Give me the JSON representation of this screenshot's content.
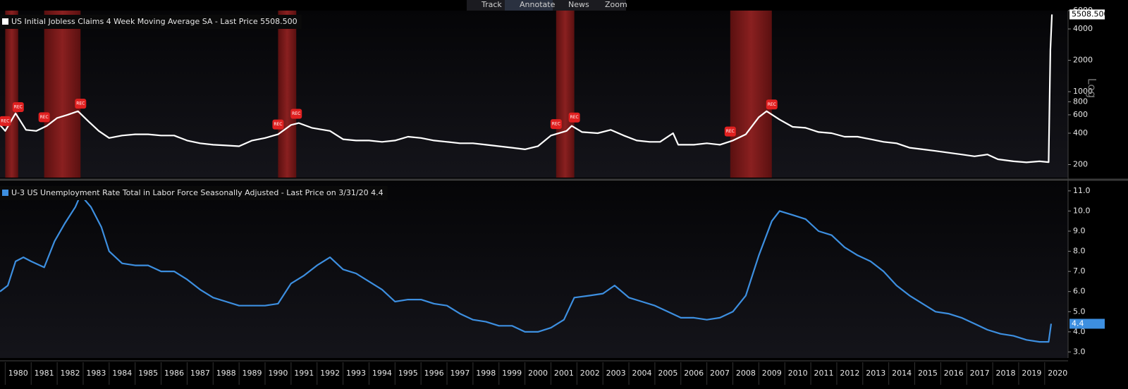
{
  "toolbar": {
    "items": [
      "Track",
      "Annotate",
      "News",
      "Zoom"
    ]
  },
  "chart_data": [
    {
      "type": "line",
      "log_scale": true,
      "axis_label": "Log",
      "recession_label": "REC",
      "recessions": [
        [
          1980.0,
          1980.5
        ],
        [
          1981.5,
          1982.9
        ],
        [
          1990.5,
          1991.2
        ],
        [
          2001.2,
          2001.9
        ],
        [
          2007.9,
          2009.5
        ]
      ],
      "xlim": [
        1979.8,
        2020.9
      ],
      "ylim": [
        150,
        6000
      ],
      "yticks": [
        200,
        400,
        600,
        800,
        1000,
        2000,
        4000,
        6000
      ],
      "series": [
        {
          "name": "US Initial Jobless Claims 4 Week Moving Average SA - Last Price 5508.500",
          "color": "#ffffff",
          "x": [
            1979.8,
            1980.0,
            1980.4,
            1980.8,
            1981.2,
            1981.6,
            1982.0,
            1982.4,
            1982.8,
            1983.2,
            1983.6,
            1984.0,
            1984.5,
            1985.0,
            1985.5,
            1986.0,
            1986.5,
            1987.0,
            1987.5,
            1988.0,
            1988.5,
            1989.0,
            1989.5,
            1990.0,
            1990.5,
            1991.0,
            1991.3,
            1991.8,
            1992.5,
            1993.0,
            1993.5,
            1994.0,
            1994.5,
            1995.0,
            1995.5,
            1996.0,
            1996.5,
            1997.0,
            1997.5,
            1998.0,
            1998.5,
            1999.0,
            1999.5,
            2000.0,
            2000.5,
            2001.0,
            2001.6,
            2001.8,
            2002.2,
            2002.8,
            2003.3,
            2003.8,
            2004.3,
            2004.8,
            2005.2,
            2005.7,
            2005.9,
            2006.5,
            2007.0,
            2007.5,
            2008.0,
            2008.5,
            2009.0,
            2009.3,
            2009.8,
            2010.3,
            2010.8,
            2011.3,
            2011.8,
            2012.3,
            2012.8,
            2013.3,
            2013.8,
            2014.3,
            2014.8,
            2015.3,
            2015.8,
            2016.3,
            2016.8,
            2017.3,
            2017.8,
            2018.2,
            2018.8,
            2019.3,
            2019.8,
            2020.15,
            2020.22,
            2020.28
          ],
          "values": [
            480,
            420,
            620,
            430,
            420,
            470,
            560,
            600,
            650,
            520,
            420,
            360,
            380,
            390,
            390,
            380,
            380,
            340,
            320,
            310,
            305,
            300,
            340,
            360,
            390,
            480,
            500,
            450,
            420,
            350,
            340,
            340,
            330,
            340,
            370,
            360,
            340,
            330,
            320,
            320,
            310,
            300,
            290,
            280,
            300,
            380,
            420,
            470,
            410,
            400,
            430,
            380,
            340,
            330,
            330,
            400,
            310,
            310,
            320,
            310,
            340,
            390,
            570,
            650,
            540,
            460,
            450,
            410,
            400,
            370,
            370,
            350,
            330,
            320,
            290,
            280,
            270,
            260,
            250,
            240,
            250,
            225,
            215,
            210,
            215,
            211,
            2500,
            5508.5
          ],
          "value_labels": [
            null,
            null,
            null,
            null,
            null,
            null,
            null,
            null,
            null,
            null,
            null,
            null,
            null,
            null,
            null,
            null,
            null,
            null,
            null,
            null,
            null,
            null,
            null,
            null,
            null,
            null,
            null,
            null,
            null,
            null,
            null,
            null,
            null,
            null,
            null,
            null,
            null,
            null,
            null,
            null,
            null,
            null,
            null,
            null,
            null,
            null,
            null,
            null,
            null,
            null,
            null,
            null,
            null,
            null,
            null,
            null,
            null,
            null,
            null,
            null,
            null,
            null,
            null,
            null,
            null,
            null,
            null,
            null,
            null,
            null,
            null,
            null,
            null,
            null,
            null,
            null,
            null,
            null,
            null,
            null,
            null,
            null,
            null,
            null,
            null,
            null,
            null,
            "5508.500"
          ]
        }
      ]
    },
    {
      "type": "line",
      "xlim": [
        1979.8,
        2020.9
      ],
      "ylim": [
        2.7,
        11.45
      ],
      "yticks": [
        {
          "value": 3,
          "label": "3.0"
        },
        {
          "value": 4,
          "label": "4.0"
        },
        {
          "value": 5,
          "label": "5.0"
        },
        {
          "value": 6,
          "label": "6.0"
        },
        {
          "value": 7,
          "label": "7.0"
        },
        {
          "value": 8,
          "label": "8.0"
        },
        {
          "value": 9,
          "label": "9.0"
        },
        {
          "value": 10,
          "label": "10.0"
        },
        {
          "value": 11,
          "label": "11.0"
        }
      ],
      "xticks": [
        1980,
        1981,
        1982,
        1983,
        1984,
        1985,
        1986,
        1987,
        1988,
        1989,
        1990,
        1991,
        1992,
        1993,
        1994,
        1995,
        1996,
        1997,
        1998,
        1999,
        2000,
        2001,
        2002,
        2003,
        2004,
        2005,
        2006,
        2007,
        2008,
        2009,
        2010,
        2011,
        2012,
        2013,
        2014,
        2015,
        2016,
        2017,
        2018,
        2019,
        2020
      ],
      "series": [
        {
          "name": "U-3 US Unemployment Rate Total in Labor Force Seasonally Adjusted - Last Price on 3/31/20 4.4",
          "color": "#3d8fe0",
          "x": [
            1979.8,
            1980.1,
            1980.4,
            1980.7,
            1981.0,
            1981.5,
            1981.9,
            1982.3,
            1982.7,
            1982.9,
            1983.3,
            1983.7,
            1984.0,
            1984.5,
            1985.0,
            1985.5,
            1986.0,
            1986.5,
            1987.0,
            1987.5,
            1988.0,
            1988.5,
            1989.0,
            1989.5,
            1990.0,
            1990.5,
            1991.0,
            1991.5,
            1992.0,
            1992.5,
            1993.0,
            1993.5,
            1994.0,
            1994.5,
            1995.0,
            1995.5,
            1996.0,
            1996.5,
            1997.0,
            1997.5,
            1998.0,
            1998.5,
            1999.0,
            1999.5,
            2000.0,
            2000.5,
            2001.0,
            2001.5,
            2001.9,
            2002.5,
            2003.0,
            2003.45,
            2004.0,
            2004.5,
            2005.0,
            2005.5,
            2006.0,
            2006.5,
            2007.0,
            2007.5,
            2008.0,
            2008.5,
            2009.0,
            2009.5,
            2009.8,
            2010.3,
            2010.8,
            2011.3,
            2011.8,
            2012.3,
            2012.8,
            2013.3,
            2013.8,
            2014.3,
            2014.8,
            2015.3,
            2015.8,
            2016.3,
            2016.8,
            2017.3,
            2017.8,
            2018.3,
            2018.8,
            2019.3,
            2019.8,
            2020.15,
            2020.25
          ],
          "values": [
            6.0,
            6.3,
            7.5,
            7.7,
            7.5,
            7.2,
            8.5,
            9.4,
            10.2,
            10.8,
            10.2,
            9.2,
            8.0,
            7.4,
            7.3,
            7.3,
            7.0,
            7.0,
            6.6,
            6.1,
            5.7,
            5.5,
            5.3,
            5.3,
            5.3,
            5.4,
            6.4,
            6.8,
            7.3,
            7.7,
            7.1,
            6.9,
            6.5,
            6.1,
            5.5,
            5.6,
            5.6,
            5.4,
            5.3,
            4.9,
            4.6,
            4.5,
            4.3,
            4.3,
            4.0,
            4.0,
            4.2,
            4.6,
            5.7,
            5.8,
            5.9,
            6.3,
            5.7,
            5.5,
            5.3,
            5.0,
            4.7,
            4.7,
            4.6,
            4.7,
            5.0,
            5.8,
            7.8,
            9.5,
            10.0,
            9.8,
            9.6,
            9.0,
            8.8,
            8.2,
            7.8,
            7.5,
            7.0,
            6.3,
            5.8,
            5.4,
            5.0,
            4.9,
            4.7,
            4.4,
            4.1,
            3.9,
            3.8,
            3.6,
            3.5,
            3.5,
            4.4
          ]
        }
      ]
    }
  ]
}
